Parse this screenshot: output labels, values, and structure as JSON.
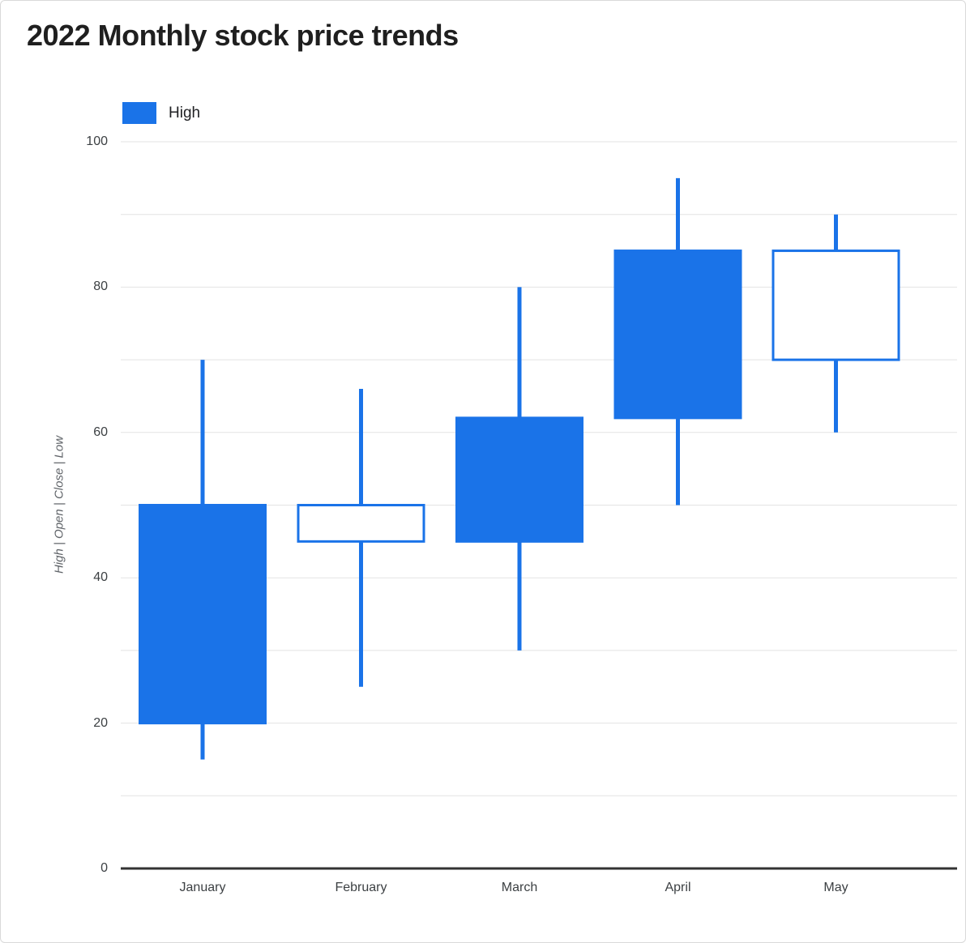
{
  "title": "2022 Monthly stock price trends",
  "legend": {
    "items": [
      {
        "label": "High",
        "color": "#1a73e8"
      }
    ]
  },
  "y_axis": {
    "title": "High | Open | Close | Low",
    "min": 0,
    "max": 100,
    "major_ticks": [
      0,
      20,
      40,
      60,
      80,
      100
    ],
    "minor_gridline_step": 10
  },
  "x_axis": {
    "categories": [
      "January",
      "February",
      "March",
      "April",
      "May"
    ]
  },
  "chart_data": {
    "type": "candlestick",
    "title": "2022 Monthly stock price trends",
    "categories": [
      "January",
      "February",
      "March",
      "April",
      "May"
    ],
    "series": [
      {
        "name": "High",
        "points": [
          {
            "category": "January",
            "low": 15,
            "open": 50,
            "close": 20,
            "high": 70,
            "direction": "falling"
          },
          {
            "category": "February",
            "low": 25,
            "open": 45,
            "close": 50,
            "high": 66,
            "direction": "rising"
          },
          {
            "category": "March",
            "low": 30,
            "open": 62,
            "close": 45,
            "high": 80,
            "direction": "falling"
          },
          {
            "category": "April",
            "low": 50,
            "open": 85,
            "close": 62,
            "high": 95,
            "direction": "falling"
          },
          {
            "category": "May",
            "low": 60,
            "open": 70,
            "close": 85,
            "high": 90,
            "direction": "rising"
          }
        ]
      }
    ],
    "ylim": [
      0,
      100
    ],
    "grid": true,
    "legend_position": "top-left",
    "colors": {
      "falling_fill": "#1a73e8",
      "rising_fill": "#ffffff",
      "stroke": "#1a73e8",
      "gridline": "#e3e3e3",
      "axis_line": "#333333"
    }
  }
}
